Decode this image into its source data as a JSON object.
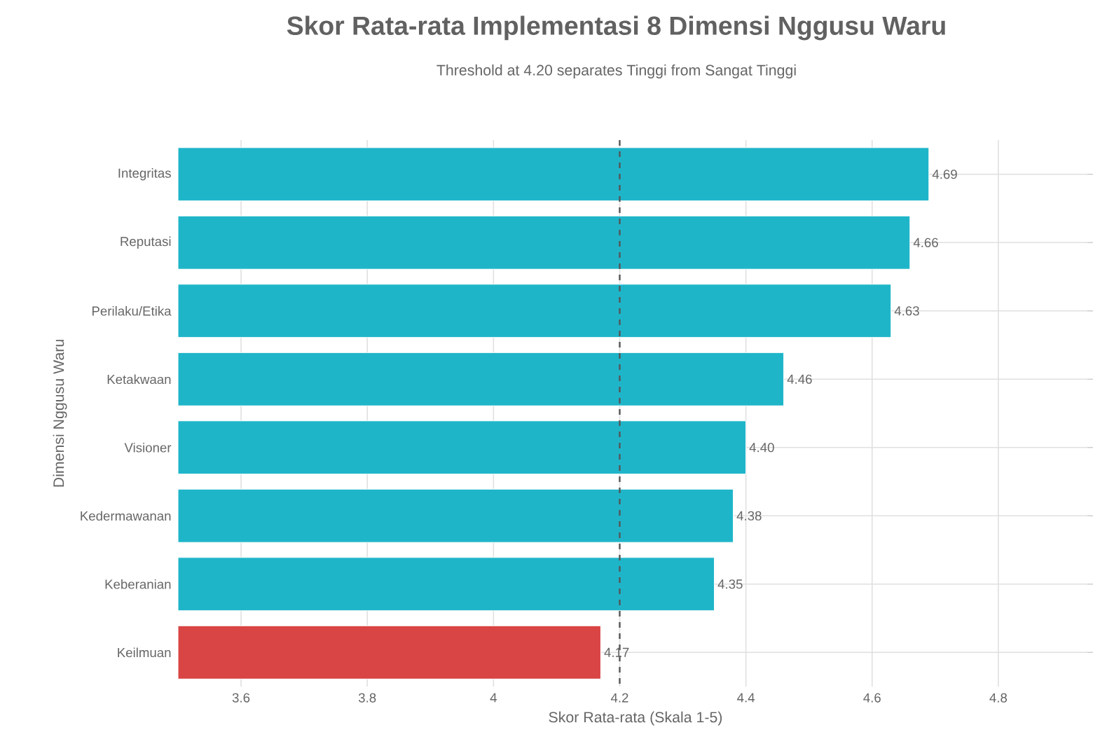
{
  "chart_data": {
    "type": "bar",
    "orientation": "horizontal",
    "title": "Skor Rata-rata Implementasi 8 Dimensi Nggusu Waru",
    "subtitle": "Threshold at 4.20 separates Tinggi from Sangat Tinggi",
    "xlabel": "Skor Rata-rata (Skala 1-5)",
    "ylabel": "Dimensi Nggusu Waru",
    "categories": [
      "Integritas",
      "Reputasi",
      "Perilaku/Etika",
      "Ketakwaan",
      "Visioner",
      "Kedermawanan",
      "Keberanian",
      "Keilmuan"
    ],
    "values": [
      4.69,
      4.66,
      4.63,
      4.46,
      4.4,
      4.38,
      4.35,
      4.17
    ],
    "value_labels": [
      "4.69",
      "4.66",
      "4.63",
      "4.46",
      "4.40",
      "4.38",
      "4.35",
      "4.17"
    ],
    "colors": [
      "#1fb5c9",
      "#1fb5c9",
      "#1fb5c9",
      "#1fb5c9",
      "#1fb5c9",
      "#1fb5c9",
      "#1fb5c9",
      "#d94444"
    ],
    "xlim": [
      3.5,
      4.95
    ],
    "xticks": [
      3.6,
      3.8,
      4,
      4.2,
      4.4,
      4.6,
      4.8
    ],
    "ref_lines": [
      {
        "axis": "x",
        "value": 4.2,
        "color": "#555555",
        "line_style": "dashed"
      }
    ],
    "grid": true
  }
}
